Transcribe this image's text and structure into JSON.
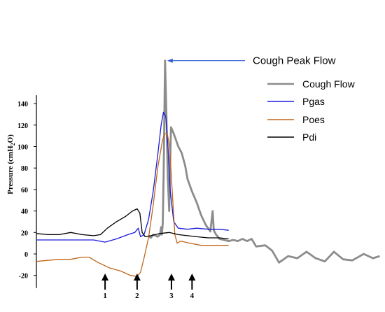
{
  "chart_data": {
    "type": "line",
    "ylabel": "Pressure (cmH2O)",
    "ylabel_parts": [
      "Pressure (cmH",
      "2",
      "O)"
    ],
    "ylim": [
      -20,
      140
    ],
    "yticks": [
      -20,
      0,
      20,
      40,
      60,
      80,
      100,
      120,
      140
    ],
    "grid": false,
    "legend_position": "right",
    "annotation": "Cough Peak Flow",
    "series": [
      {
        "name": "Cough Flow",
        "color": "#8c8c8c",
        "points": [
          [
            0.49,
            17
          ],
          [
            0.5,
            15
          ],
          [
            0.51,
            18
          ],
          [
            0.52,
            17
          ],
          [
            0.53,
            16
          ],
          [
            0.54,
            18
          ],
          [
            0.545,
            25
          ],
          [
            0.548,
            18
          ],
          [
            0.552,
            28
          ],
          [
            0.556,
            75
          ],
          [
            0.562,
            180
          ],
          [
            0.568,
            130
          ],
          [
            0.574,
            72
          ],
          [
            0.58,
            40
          ],
          [
            0.584,
            82
          ],
          [
            0.588,
            118
          ],
          [
            0.6,
            112
          ],
          [
            0.61,
            106
          ],
          [
            0.62,
            100
          ],
          [
            0.635,
            94
          ],
          [
            0.65,
            82
          ],
          [
            0.66,
            70
          ],
          [
            0.68,
            58
          ],
          [
            0.7,
            48
          ],
          [
            0.72,
            36
          ],
          [
            0.74,
            27
          ],
          [
            0.76,
            21
          ],
          [
            0.77,
            40
          ],
          [
            0.775,
            22
          ],
          [
            0.785,
            18
          ],
          [
            0.8,
            14
          ],
          [
            0.82,
            13
          ],
          [
            0.84,
            12
          ],
          [
            0.86,
            13
          ],
          [
            0.88,
            12
          ],
          [
            0.9,
            14
          ],
          [
            0.92,
            12
          ],
          [
            0.94,
            14
          ],
          [
            0.96,
            7
          ],
          [
            1.0,
            8
          ],
          [
            1.03,
            3
          ],
          [
            1.06,
            -8
          ],
          [
            1.1,
            -2
          ],
          [
            1.14,
            -4
          ],
          [
            1.18,
            2
          ],
          [
            1.22,
            -4
          ],
          [
            1.26,
            -7
          ],
          [
            1.3,
            2
          ],
          [
            1.34,
            -5
          ],
          [
            1.38,
            -6
          ],
          [
            1.43,
            0
          ],
          [
            1.47,
            -4
          ],
          [
            1.5,
            -2
          ]
        ]
      },
      {
        "name": "Pgas",
        "color": "#1a1adb",
        "points": [
          [
            0.0,
            13
          ],
          [
            0.05,
            13
          ],
          [
            0.1,
            13
          ],
          [
            0.15,
            13
          ],
          [
            0.2,
            13
          ],
          [
            0.25,
            13
          ],
          [
            0.3,
            11
          ],
          [
            0.35,
            14
          ],
          [
            0.4,
            18
          ],
          [
            0.43,
            20
          ],
          [
            0.445,
            24
          ],
          [
            0.455,
            16
          ],
          [
            0.47,
            18
          ],
          [
            0.49,
            32
          ],
          [
            0.51,
            58
          ],
          [
            0.53,
            92
          ],
          [
            0.545,
            120
          ],
          [
            0.555,
            132
          ],
          [
            0.565,
            128
          ],
          [
            0.575,
            100
          ],
          [
            0.585,
            58
          ],
          [
            0.6,
            30
          ],
          [
            0.62,
            24
          ],
          [
            0.66,
            23
          ],
          [
            0.7,
            24
          ],
          [
            0.75,
            23
          ],
          [
            0.8,
            23
          ],
          [
            0.84,
            22
          ]
        ]
      },
      {
        "name": "Poes",
        "color": "#c0661a",
        "points": [
          [
            0.0,
            -7
          ],
          [
            0.05,
            -6
          ],
          [
            0.1,
            -5
          ],
          [
            0.15,
            -5
          ],
          [
            0.2,
            -3
          ],
          [
            0.23,
            -3
          ],
          [
            0.27,
            -8
          ],
          [
            0.32,
            -13
          ],
          [
            0.37,
            -16
          ],
          [
            0.41,
            -20
          ],
          [
            0.44,
            -21
          ],
          [
            0.455,
            -17
          ],
          [
            0.47,
            -4
          ],
          [
            0.49,
            15
          ],
          [
            0.51,
            45
          ],
          [
            0.53,
            80
          ],
          [
            0.55,
            105
          ],
          [
            0.56,
            112
          ],
          [
            0.572,
            112
          ],
          [
            0.582,
            100
          ],
          [
            0.595,
            52
          ],
          [
            0.605,
            18
          ],
          [
            0.615,
            10
          ],
          [
            0.63,
            12
          ],
          [
            0.67,
            10
          ],
          [
            0.72,
            8
          ],
          [
            0.78,
            8
          ],
          [
            0.84,
            8
          ]
        ]
      },
      {
        "name": "Pdi",
        "color": "#000000",
        "points": [
          [
            0.0,
            19
          ],
          [
            0.05,
            18
          ],
          [
            0.1,
            18
          ],
          [
            0.15,
            20
          ],
          [
            0.2,
            18
          ],
          [
            0.25,
            17
          ],
          [
            0.28,
            18
          ],
          [
            0.31,
            24
          ],
          [
            0.35,
            30
          ],
          [
            0.39,
            35
          ],
          [
            0.42,
            40
          ],
          [
            0.44,
            42
          ],
          [
            0.452,
            38
          ],
          [
            0.462,
            20
          ],
          [
            0.475,
            16
          ],
          [
            0.5,
            17
          ],
          [
            0.54,
            19
          ],
          [
            0.58,
            20
          ],
          [
            0.62,
            18
          ],
          [
            0.66,
            17
          ],
          [
            0.7,
            16
          ],
          [
            0.75,
            15
          ],
          [
            0.8,
            15
          ],
          [
            0.84,
            14
          ]
        ]
      }
    ],
    "markers": [
      {
        "label": "1",
        "x": 0.3
      },
      {
        "label": "2",
        "x": 0.44
      },
      {
        "label": "3",
        "x": 0.59
      },
      {
        "label": "4",
        "x": 0.68
      }
    ]
  }
}
